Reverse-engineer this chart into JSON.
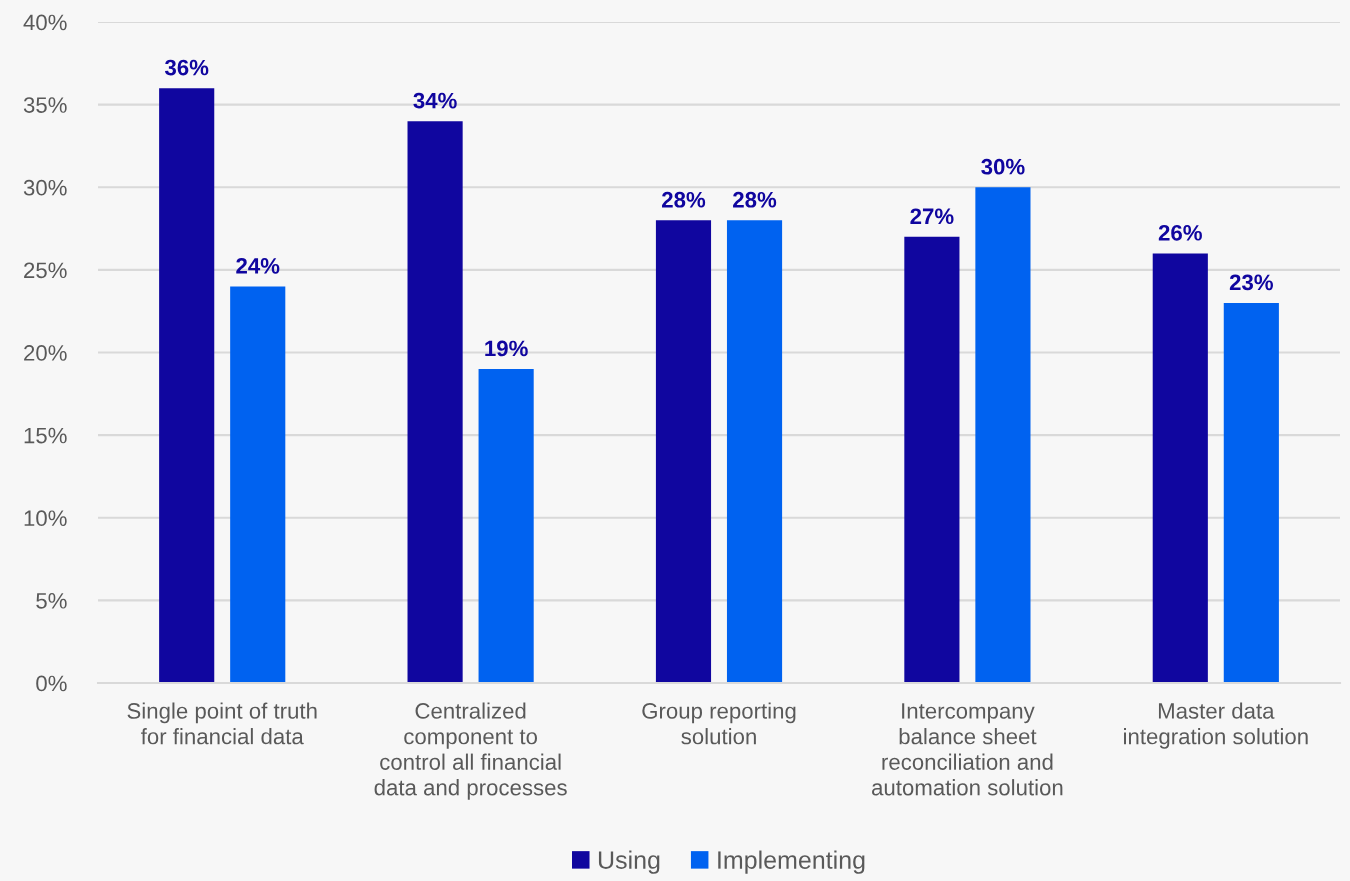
{
  "chart_data": {
    "type": "bar",
    "categories": [
      "Single point of truth\nfor financial data",
      "Centralized\ncomponent to\ncontrol all financial\ndata and processes",
      "Group reporting\nsolution",
      "Intercompany\nbalance sheet\nreconciliation and\nautomation solution",
      "Master data\nintegration solution"
    ],
    "series": [
      {
        "name": "Using",
        "color": "#10069f",
        "values": [
          36,
          34,
          28,
          27,
          26
        ],
        "value_labels": [
          "36%",
          "34%",
          "28%",
          "27%",
          "26%"
        ]
      },
      {
        "name": "Implementing",
        "color": "#0062f0",
        "values": [
          24,
          19,
          28,
          30,
          23
        ],
        "value_labels": [
          "24%",
          "19%",
          "28%",
          "30%",
          "23%"
        ]
      }
    ],
    "ylim": [
      0,
      40
    ],
    "yticks": [
      {
        "value": 0,
        "label": "0%"
      },
      {
        "value": 5,
        "label": "5%"
      },
      {
        "value": 10,
        "label": "10%"
      },
      {
        "value": 15,
        "label": "15%"
      },
      {
        "value": 20,
        "label": "20%"
      },
      {
        "value": 25,
        "label": "25%"
      },
      {
        "value": 30,
        "label": "30%"
      },
      {
        "value": 35,
        "label": "35%"
      },
      {
        "value": 40,
        "label": "40%"
      }
    ],
    "grid": "y",
    "legend": "bottom"
  }
}
